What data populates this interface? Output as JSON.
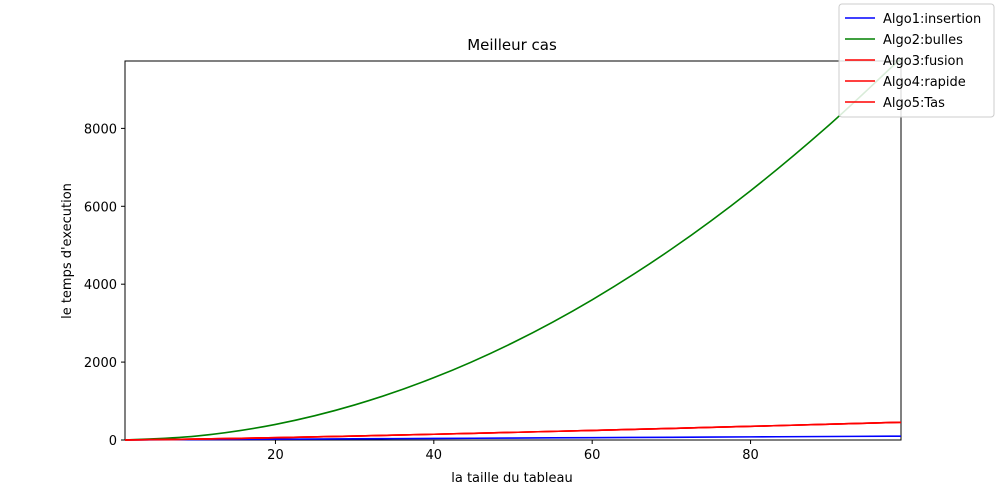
{
  "chart_data": {
    "type": "line",
    "title": "Meilleur cas",
    "xlabel": "la taille du tableau",
    "ylabel": "le temps d'execution",
    "xlim": [
      1,
      99
    ],
    "ylim": [
      0,
      9730
    ],
    "xticks": [
      20,
      40,
      60,
      80
    ],
    "yticks": [
      0,
      2000,
      4000,
      6000,
      8000
    ],
    "grid": false,
    "legend_position": "top-right",
    "x": [
      1,
      10,
      20,
      30,
      40,
      50,
      60,
      70,
      80,
      90,
      99
    ],
    "series": [
      {
        "name": "Algo1:insertion",
        "color": "#0000ff",
        "values": [
          1,
          10,
          20,
          30,
          40,
          50,
          60,
          70,
          80,
          90,
          99
        ]
      },
      {
        "name": "Algo2:bulles",
        "color": "#008000",
        "values": [
          1,
          100,
          400,
          900,
          1600,
          2500,
          3600,
          4900,
          6400,
          8100,
          9801
        ]
      },
      {
        "name": "Algo3:fusion",
        "color": "#ff0000",
        "values": [
          0,
          23,
          60,
          102,
          148,
          196,
          246,
          297,
          351,
          405,
          455
        ]
      },
      {
        "name": "Algo4:rapide",
        "color": "#ff0000",
        "values": [
          0,
          23,
          60,
          102,
          148,
          196,
          246,
          297,
          351,
          405,
          455
        ]
      },
      {
        "name": "Algo5:Tas",
        "color": "#ff0000",
        "values": [
          0,
          23,
          60,
          102,
          148,
          196,
          246,
          297,
          351,
          405,
          455
        ]
      }
    ]
  }
}
